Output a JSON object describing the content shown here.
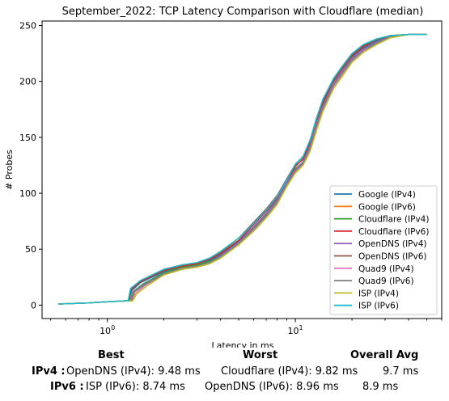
{
  "chart_data": {
    "type": "line",
    "title": "September_2022: TCP Latency Comparison with Cloudflare (median)",
    "xlabel": "Latency in ms",
    "ylabel": "# Probes",
    "xscale": "log",
    "xlim": [
      0.45,
      60
    ],
    "ylim": [
      -12,
      254
    ],
    "x_ticks": [
      {
        "value": 1,
        "label": "10^0"
      },
      {
        "value": 10,
        "label": "10^1"
      }
    ],
    "y_ticks": [
      0,
      50,
      100,
      150,
      200,
      250
    ],
    "grid": false,
    "legend_position": "lower-right",
    "series": [
      {
        "name": "Google (IPv4)",
        "color": "#1f77b4",
        "x": [
          0.55,
          0.8,
          1.0,
          1.3,
          1.35,
          1.5,
          2.0,
          2.5,
          3.0,
          3.5,
          4.0,
          5.0,
          6.0,
          7.0,
          8.0,
          9.0,
          10.0,
          11.0,
          12.0,
          13.0,
          14.0,
          16.0,
          18.0,
          20.0,
          23.0,
          27.0,
          32.0,
          40.0,
          50.0
        ],
        "y": [
          1,
          2,
          3,
          4,
          13,
          20,
          30,
          35,
          37,
          40,
          45,
          57,
          70,
          82,
          95,
          110,
          125,
          130,
          145,
          165,
          180,
          200,
          212,
          222,
          230,
          236,
          241,
          242,
          242
        ]
      },
      {
        "name": "Google (IPv6)",
        "color": "#ff7f0e",
        "x": [
          0.55,
          0.8,
          1.0,
          1.35,
          1.4,
          1.6,
          2.0,
          2.5,
          3.0,
          3.5,
          4.0,
          5.0,
          6.0,
          7.0,
          8.0,
          9.0,
          10.0,
          11.0,
          12.0,
          13.0,
          14.0,
          16.0,
          18.0,
          20.0,
          23.0,
          27.0,
          32.0,
          40.0,
          50.0
        ],
        "y": [
          1,
          2,
          3,
          4,
          12,
          19,
          28,
          33,
          35,
          38,
          43,
          55,
          68,
          80,
          92,
          108,
          120,
          127,
          140,
          160,
          175,
          196,
          208,
          219,
          228,
          234,
          240,
          242,
          242
        ]
      },
      {
        "name": "Cloudflare (IPv4)",
        "color": "#2ca02c",
        "x": [
          0.55,
          0.8,
          1.0,
          1.32,
          1.37,
          1.55,
          2.0,
          2.5,
          3.0,
          3.5,
          4.0,
          5.0,
          6.0,
          7.0,
          8.0,
          9.0,
          10.0,
          11.0,
          12.0,
          13.0,
          14.0,
          16.0,
          18.0,
          20.0,
          23.0,
          27.0,
          32.0,
          40.0,
          50.0
        ],
        "y": [
          1,
          2,
          3,
          4,
          12,
          19,
          29,
          34,
          36,
          39,
          44,
          56,
          69,
          81,
          93,
          109,
          122,
          128,
          142,
          162,
          177,
          198,
          210,
          220,
          229,
          235,
          240,
          242,
          242
        ]
      },
      {
        "name": "Cloudflare (IPv6)",
        "color": "#d62728",
        "x": [
          0.55,
          0.8,
          1.0,
          1.3,
          1.34,
          1.5,
          2.0,
          2.5,
          3.0,
          3.5,
          4.0,
          5.0,
          6.0,
          7.0,
          8.0,
          9.0,
          10.0,
          11.0,
          12.0,
          13.0,
          14.0,
          16.0,
          18.0,
          20.0,
          23.0,
          27.0,
          32.0,
          40.0,
          50.0
        ],
        "y": [
          1,
          2,
          3,
          4,
          14,
          21,
          31,
          35,
          37,
          41,
          46,
          58,
          72,
          84,
          96,
          111,
          124,
          131,
          146,
          166,
          181,
          201,
          213,
          223,
          231,
          237,
          241,
          242,
          242
        ]
      },
      {
        "name": "OpenDNS (IPv4)",
        "color": "#9467bd",
        "x": [
          0.55,
          0.8,
          1.0,
          1.33,
          1.38,
          1.55,
          2.0,
          2.5,
          3.0,
          3.5,
          4.0,
          5.0,
          6.0,
          7.0,
          8.0,
          9.0,
          10.0,
          11.0,
          12.0,
          13.0,
          14.0,
          16.0,
          18.0,
          20.0,
          23.0,
          27.0,
          32.0,
          40.0,
          50.0
        ],
        "y": [
          1,
          2,
          3,
          4,
          12,
          18,
          28,
          33,
          35,
          38,
          44,
          56,
          70,
          82,
          94,
          110,
          121,
          128,
          143,
          163,
          178,
          199,
          211,
          221,
          229,
          235,
          240,
          242,
          242
        ]
      },
      {
        "name": "OpenDNS (IPv6)",
        "color": "#8c564b",
        "x": [
          0.55,
          0.8,
          1.0,
          1.3,
          1.34,
          1.5,
          2.0,
          2.5,
          3.0,
          3.5,
          4.0,
          5.0,
          6.0,
          7.0,
          8.0,
          9.0,
          10.0,
          11.0,
          12.0,
          13.0,
          14.0,
          16.0,
          18.0,
          20.0,
          23.0,
          27.0,
          32.0,
          40.0,
          50.0
        ],
        "y": [
          1,
          2,
          3,
          4,
          15,
          22,
          32,
          36,
          38,
          42,
          47,
          60,
          74,
          86,
          98,
          113,
          126,
          133,
          148,
          168,
          183,
          202,
          214,
          224,
          232,
          237,
          241,
          242,
          242
        ]
      },
      {
        "name": "Quad9 (IPv4)",
        "color": "#e377c2",
        "x": [
          0.55,
          0.8,
          1.0,
          1.36,
          1.42,
          1.6,
          2.0,
          2.5,
          3.0,
          3.5,
          4.0,
          5.0,
          6.0,
          7.0,
          8.0,
          9.0,
          10.0,
          11.0,
          12.0,
          13.0,
          14.0,
          16.0,
          18.0,
          20.0,
          23.0,
          27.0,
          32.0,
          40.0,
          50.0
        ],
        "y": [
          1,
          2,
          3,
          4,
          11,
          18,
          27,
          32,
          34,
          37,
          42,
          54,
          67,
          79,
          91,
          107,
          119,
          126,
          139,
          158,
          174,
          195,
          207,
          218,
          227,
          233,
          239,
          242,
          242
        ]
      },
      {
        "name": "Quad9 (IPv6)",
        "color": "#7f7f7f",
        "x": [
          0.55,
          0.8,
          1.0,
          1.34,
          1.39,
          1.58,
          2.0,
          2.5,
          3.0,
          3.5,
          4.0,
          5.0,
          6.0,
          7.0,
          8.0,
          9.0,
          10.0,
          11.0,
          12.0,
          13.0,
          14.0,
          16.0,
          18.0,
          20.0,
          23.0,
          27.0,
          32.0,
          40.0,
          50.0
        ],
        "y": [
          1,
          2,
          3,
          4,
          12,
          18,
          28,
          33,
          35,
          38,
          43,
          55,
          68,
          80,
          92,
          108,
          120,
          127,
          141,
          161,
          176,
          197,
          209,
          219,
          228,
          234,
          240,
          242,
          242
        ]
      },
      {
        "name": "ISP (IPv4)",
        "color": "#bcbd22",
        "x": [
          0.55,
          0.8,
          1.0,
          1.37,
          1.43,
          1.62,
          2.0,
          2.5,
          3.0,
          3.5,
          4.0,
          5.0,
          6.0,
          7.0,
          8.0,
          9.0,
          10.0,
          11.0,
          12.0,
          13.0,
          14.0,
          16.0,
          18.0,
          20.0,
          23.0,
          27.0,
          32.0,
          40.0,
          50.0
        ],
        "y": [
          1,
          2,
          3,
          4,
          10,
          17,
          27,
          32,
          34,
          37,
          42,
          54,
          66,
          78,
          90,
          106,
          118,
          125,
          138,
          157,
          173,
          194,
          206,
          217,
          226,
          233,
          239,
          242,
          242
        ]
      },
      {
        "name": "ISP (IPv6)",
        "color": "#17becf",
        "x": [
          0.55,
          0.8,
          1.0,
          1.29,
          1.33,
          1.5,
          2.0,
          2.5,
          3.0,
          3.5,
          4.0,
          5.0,
          6.0,
          7.0,
          8.0,
          9.0,
          10.0,
          11.0,
          12.0,
          13.0,
          14.0,
          16.0,
          18.0,
          20.0,
          23.0,
          27.0,
          32.0,
          40.0,
          50.0
        ],
        "y": [
          1,
          2,
          3,
          4,
          15,
          22,
          32,
          36,
          38,
          42,
          48,
          60,
          73,
          85,
          97,
          112,
          126,
          133,
          148,
          168,
          184,
          203,
          215,
          225,
          233,
          238,
          241,
          242,
          242
        ]
      }
    ]
  },
  "summary": {
    "headers": {
      "best": "Best",
      "worst": "Worst",
      "avg": "Overall Avg"
    },
    "rows": [
      {
        "label": "IPv4 :",
        "best": "OpenDNS (IPv4): 9.48 ms",
        "worst": "Cloudflare (IPv4): 9.82 ms",
        "avg": "9.7 ms"
      },
      {
        "label": "IPv6 :",
        "best": "ISP (IPv6): 8.74 ms",
        "worst": "OpenDNS (IPv6): 8.96 ms",
        "avg": "8.9 ms"
      }
    ]
  }
}
